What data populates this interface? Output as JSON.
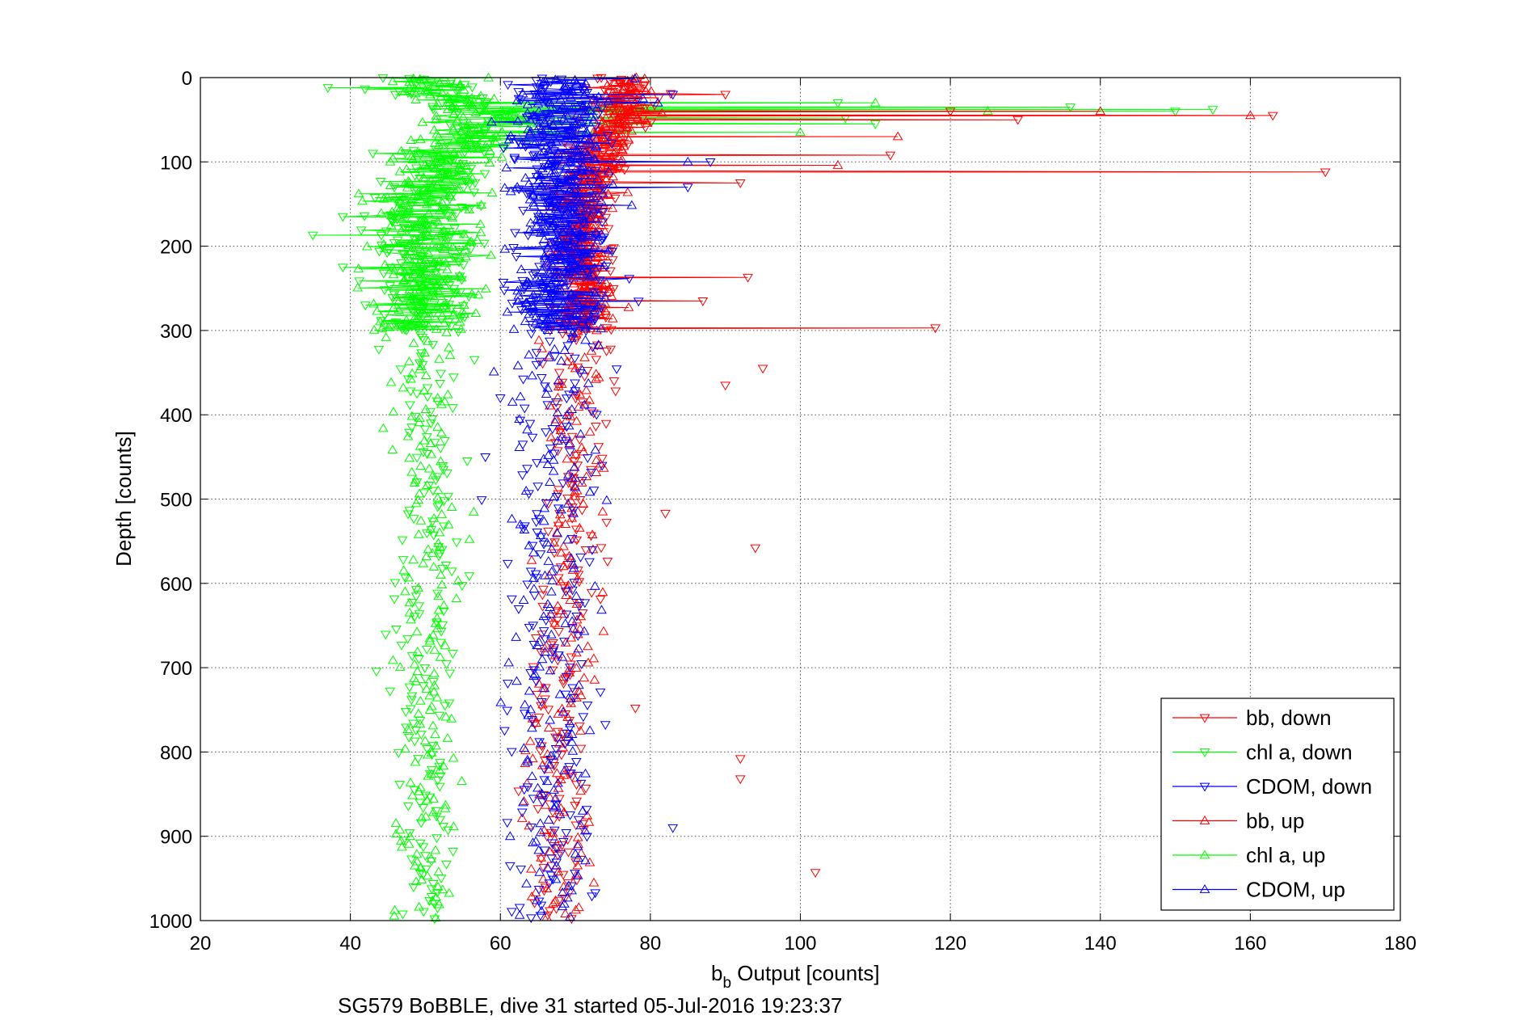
{
  "caption": "SG579 BoBBLE, dive 31 started 05-Jul-2016 19:23:37",
  "chart_data": {
    "type": "scatter",
    "xlabel": "b",
    "xlabel_sub": "b",
    "xlabel_rest": " Output [counts]",
    "ylabel": "Depth [counts]",
    "xlim": [
      20,
      180
    ],
    "ylim": [
      0,
      1000
    ],
    "y_reversed": true,
    "grid": true,
    "legend_position": "bottom-right",
    "xticks": [
      20,
      40,
      60,
      80,
      100,
      120,
      140,
      160,
      180
    ],
    "yticks": [
      0,
      100,
      200,
      300,
      400,
      500,
      600,
      700,
      800,
      900,
      1000
    ],
    "xtick_labels": [
      "20",
      "40",
      "60",
      "80",
      "100",
      "120",
      "140",
      "160",
      "180"
    ],
    "ytick_labels": [
      "0",
      "100",
      "200",
      "300",
      "400",
      "500",
      "600",
      "700",
      "800",
      "900",
      "1000"
    ],
    "series": [
      {
        "name": "bb, down",
        "color": "#ff0000",
        "marker": "triangle-down",
        "profile": [
          [
            0,
            76
          ],
          [
            25,
            77
          ],
          [
            50,
            76
          ],
          [
            75,
            74
          ],
          [
            100,
            72
          ],
          [
            150,
            71
          ],
          [
            200,
            71
          ],
          [
            250,
            71
          ],
          [
            300,
            72
          ],
          [
            400,
            70
          ],
          [
            500,
            70
          ],
          [
            600,
            69
          ],
          [
            700,
            68
          ],
          [
            800,
            68
          ],
          [
            900,
            68
          ],
          [
            1000,
            68
          ]
        ],
        "spread": [
          [
            0,
            3
          ],
          [
            50,
            4
          ],
          [
            100,
            3
          ],
          [
            300,
            3
          ],
          [
            400,
            3
          ],
          [
            1000,
            3
          ]
        ],
        "spikes": [
          [
            45,
            163
          ],
          [
            112,
            170
          ],
          [
            297,
            118
          ],
          [
            50,
            129
          ],
          [
            92,
            112
          ],
          [
            125,
            92
          ],
          [
            237,
            93
          ],
          [
            265,
            87
          ],
          [
            20,
            90
          ],
          [
            40,
            120
          ],
          [
            345,
            95
          ],
          [
            365,
            90
          ],
          [
            517,
            82
          ],
          [
            558,
            94
          ],
          [
            748,
            78
          ],
          [
            808,
            92
          ],
          [
            832,
            92
          ],
          [
            943,
            102
          ]
        ]
      },
      {
        "name": "chl a, down",
        "color": "#00ff00",
        "marker": "triangle-down",
        "profile": [
          [
            0,
            49
          ],
          [
            20,
            52
          ],
          [
            50,
            60
          ],
          [
            75,
            58
          ],
          [
            100,
            52
          ],
          [
            150,
            50
          ],
          [
            200,
            50
          ],
          [
            250,
            50
          ],
          [
            300,
            50
          ],
          [
            400,
            50
          ],
          [
            500,
            50
          ],
          [
            600,
            50
          ],
          [
            700,
            50
          ],
          [
            800,
            50
          ],
          [
            900,
            50
          ],
          [
            1000,
            50
          ]
        ],
        "spread": [
          [
            0,
            5
          ],
          [
            50,
            6
          ],
          [
            100,
            5
          ],
          [
            300,
            5
          ],
          [
            400,
            3
          ],
          [
            1000,
            3
          ]
        ],
        "spikes": [
          [
            12,
            37
          ],
          [
            38,
            155
          ],
          [
            35,
            136
          ],
          [
            40,
            150
          ],
          [
            48,
            106
          ],
          [
            30,
            105
          ],
          [
            55,
            110
          ],
          [
            187,
            35
          ],
          [
            165,
            39
          ],
          [
            90,
            43
          ],
          [
            225,
            39
          ],
          [
            270,
            42
          ]
        ]
      },
      {
        "name": "CDOM, down",
        "color": "#0000ff",
        "marker": "triangle-down",
        "profile": [
          [
            0,
            68
          ],
          [
            50,
            68
          ],
          [
            100,
            68
          ],
          [
            150,
            68
          ],
          [
            200,
            68
          ],
          [
            250,
            68
          ],
          [
            300,
            68
          ],
          [
            400,
            67
          ],
          [
            500,
            67
          ],
          [
            600,
            67
          ],
          [
            700,
            67
          ],
          [
            800,
            67
          ],
          [
            900,
            67
          ],
          [
            1000,
            67
          ]
        ],
        "spread": [
          [
            0,
            5
          ],
          [
            300,
            5
          ],
          [
            400,
            4
          ],
          [
            1000,
            4
          ]
        ],
        "spikes": [
          [
            20,
            83
          ],
          [
            100,
            88
          ],
          [
            130,
            85
          ],
          [
            890,
            83
          ],
          [
            450,
            58
          ],
          [
            380,
            60
          ]
        ]
      },
      {
        "name": "bb, up",
        "color": "#ff0000",
        "marker": "triangle-up",
        "profile": [
          [
            0,
            77
          ],
          [
            50,
            76
          ],
          [
            100,
            73
          ],
          [
            150,
            71
          ],
          [
            200,
            71
          ],
          [
            250,
            71
          ],
          [
            300,
            71
          ],
          [
            400,
            70
          ],
          [
            500,
            70
          ],
          [
            600,
            69
          ],
          [
            700,
            69
          ],
          [
            800,
            68
          ],
          [
            900,
            68
          ],
          [
            1000,
            68
          ]
        ],
        "spread": [
          [
            0,
            3
          ],
          [
            300,
            3
          ],
          [
            1000,
            3
          ]
        ],
        "spikes": [
          [
            40,
            140
          ],
          [
            45,
            160
          ],
          [
            70,
            113
          ],
          [
            104,
            105
          ]
        ]
      },
      {
        "name": "chl a, up",
        "color": "#00ff00",
        "marker": "triangle-up",
        "profile": [
          [
            0,
            50
          ],
          [
            50,
            58
          ],
          [
            100,
            52
          ],
          [
            150,
            50
          ],
          [
            200,
            50
          ],
          [
            300,
            50
          ],
          [
            400,
            50
          ],
          [
            500,
            50
          ],
          [
            600,
            50
          ],
          [
            700,
            50
          ],
          [
            800,
            50
          ],
          [
            900,
            50
          ],
          [
            1000,
            50
          ]
        ],
        "spread": [
          [
            0,
            5
          ],
          [
            300,
            5
          ],
          [
            400,
            3
          ],
          [
            1000,
            3
          ]
        ],
        "spikes": [
          [
            40,
            125
          ],
          [
            30,
            110
          ],
          [
            65,
            100
          ]
        ]
      },
      {
        "name": "CDOM, up",
        "color": "#0000ff",
        "marker": "triangle-up",
        "profile": [
          [
            0,
            68
          ],
          [
            100,
            68
          ],
          [
            200,
            68
          ],
          [
            300,
            68
          ],
          [
            400,
            67
          ],
          [
            500,
            67
          ],
          [
            600,
            67
          ],
          [
            700,
            67
          ],
          [
            800,
            67
          ],
          [
            900,
            67
          ],
          [
            1000,
            67
          ]
        ],
        "spread": [
          [
            0,
            5
          ],
          [
            300,
            5
          ],
          [
            400,
            4
          ],
          [
            1000,
            4
          ]
        ],
        "spikes": [
          [
            30,
            81
          ],
          [
            100,
            85
          ],
          [
            25,
            79
          ]
        ]
      }
    ]
  }
}
